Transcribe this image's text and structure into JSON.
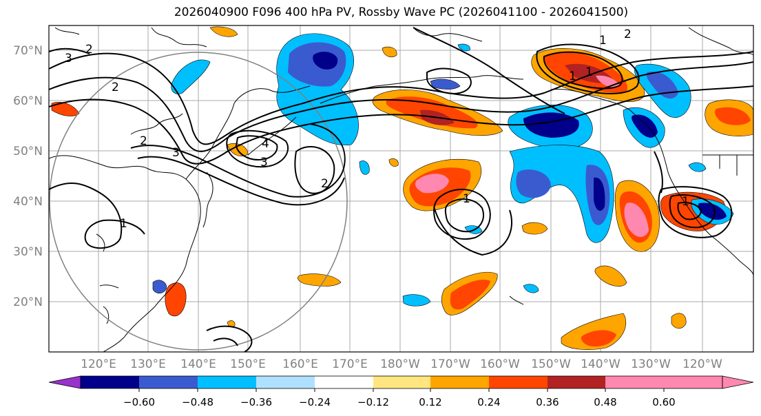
{
  "title": "2026040900 F096 400 hPa PV, Rossby Wave PC (2026041100 - 2026041500)",
  "map": {
    "lat_labels": [
      "70°N",
      "60°N",
      "50°N",
      "40°N",
      "30°N",
      "20°N"
    ],
    "lon_labels": [
      "120°E",
      "130°E",
      "140°E",
      "150°E",
      "160°E",
      "170°E",
      "180°W",
      "170°W",
      "160°W",
      "150°W",
      "140°W",
      "130°W",
      "120°W"
    ],
    "contour_labels": [
      "3",
      "2",
      "2",
      "2",
      "3",
      "4",
      "3",
      "2",
      "1",
      "1",
      "1",
      "1",
      "2",
      "1",
      "1"
    ]
  },
  "colorbar": {
    "ticks": [
      "−0.60",
      "−0.48",
      "−0.36",
      "−0.24",
      "−0.12",
      "0.12",
      "0.24",
      "0.36",
      "0.48",
      "0.60"
    ],
    "colors": [
      "#9932cc",
      "#00008b",
      "#3a5bcf",
      "#00bfff",
      "#b0e0ff",
      "#ffffff",
      "#ffe680",
      "#ffa500",
      "#ff4500",
      "#b22222",
      "#ff88b0",
      "#ff88b0"
    ]
  }
}
